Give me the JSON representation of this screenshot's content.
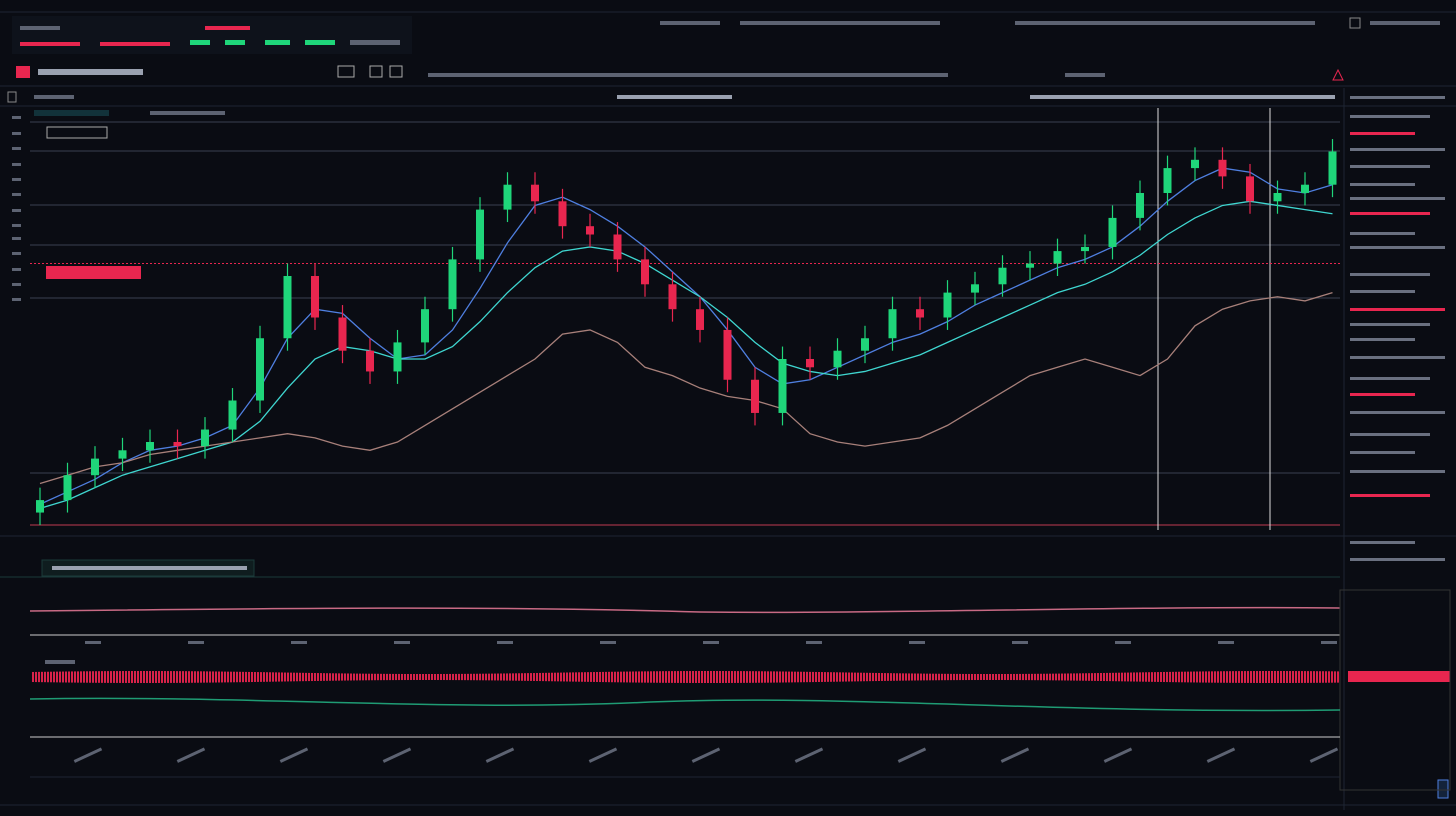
{
  "chart_data": {
    "type": "candlestick",
    "open": [
      3,
      6,
      12,
      16,
      18,
      20,
      19,
      23,
      30,
      45,
      60,
      50,
      42,
      37,
      44,
      52,
      64,
      76,
      82,
      78,
      72,
      70,
      64,
      58,
      52,
      47,
      35,
      27,
      40,
      38,
      42,
      45,
      52,
      50,
      56,
      58,
      62,
      63,
      66,
      67,
      74,
      80,
      86,
      88,
      84,
      78,
      80,
      82
    ],
    "high": [
      9,
      15,
      19,
      21,
      23,
      23,
      26,
      33,
      48,
      63,
      63,
      53,
      45,
      47,
      55,
      67,
      79,
      85,
      85,
      81,
      75,
      73,
      67,
      61,
      55,
      50,
      38,
      43,
      43,
      45,
      48,
      55,
      55,
      59,
      61,
      65,
      66,
      69,
      70,
      77,
      83,
      89,
      91,
      91,
      87,
      83,
      85,
      93
    ],
    "low": [
      0,
      3,
      9,
      13,
      15,
      16,
      16,
      20,
      27,
      42,
      47,
      39,
      34,
      34,
      41,
      49,
      61,
      73,
      75,
      69,
      67,
      61,
      55,
      49,
      44,
      32,
      24,
      24,
      35,
      35,
      39,
      42,
      47,
      47,
      53,
      55,
      59,
      60,
      63,
      64,
      71,
      77,
      83,
      81,
      75,
      75,
      77,
      79
    ],
    "close": [
      6,
      12,
      16,
      18,
      20,
      19,
      23,
      30,
      45,
      60,
      50,
      42,
      37,
      44,
      52,
      64,
      76,
      82,
      78,
      72,
      70,
      64,
      58,
      52,
      47,
      35,
      27,
      40,
      38,
      42,
      45,
      52,
      50,
      56,
      58,
      62,
      63,
      66,
      67,
      74,
      80,
      86,
      88,
      84,
      78,
      80,
      82,
      90
    ],
    "up_color": "#1fd67a",
    "down_color": "#e8264f",
    "ylim": [
      0,
      100
    ],
    "series": [
      {
        "color": "#4f7fe0",
        "values": [
          5,
          8,
          11,
          15,
          18,
          19,
          21,
          24,
          33,
          45,
          52,
          51,
          45,
          40,
          41,
          47,
          57,
          68,
          77,
          79,
          76,
          72,
          67,
          61,
          55,
          47,
          38,
          34,
          35,
          38,
          41,
          44,
          46,
          49,
          53,
          56,
          59,
          62,
          64,
          67,
          72,
          78,
          83,
          86,
          85,
          81,
          80,
          82
        ]
      },
      {
        "color": "#3fd6d0",
        "values": [
          4,
          6,
          9,
          12,
          14,
          16,
          18,
          20,
          25,
          33,
          40,
          43,
          42,
          40,
          40,
          43,
          49,
          56,
          62,
          66,
          67,
          66,
          63,
          59,
          55,
          50,
          44,
          39,
          37,
          36,
          37,
          39,
          41,
          44,
          47,
          50,
          53,
          56,
          58,
          61,
          65,
          70,
          74,
          77,
          78,
          77,
          76,
          75
        ]
      },
      {
        "color": "#a8807a",
        "values": [
          10,
          12,
          14,
          15,
          17,
          18,
          19,
          20,
          21,
          22,
          21,
          19,
          18,
          20,
          24,
          28,
          32,
          36,
          40,
          46,
          47,
          44,
          38,
          36,
          33,
          31,
          30,
          28,
          22,
          20,
          19,
          20,
          21,
          24,
          28,
          32,
          36,
          38,
          40,
          38,
          36,
          40,
          48,
          52,
          54,
          55,
          54,
          56
        ]
      }
    ],
    "alert_level": 63,
    "alert_color": "#e8264f"
  }
}
